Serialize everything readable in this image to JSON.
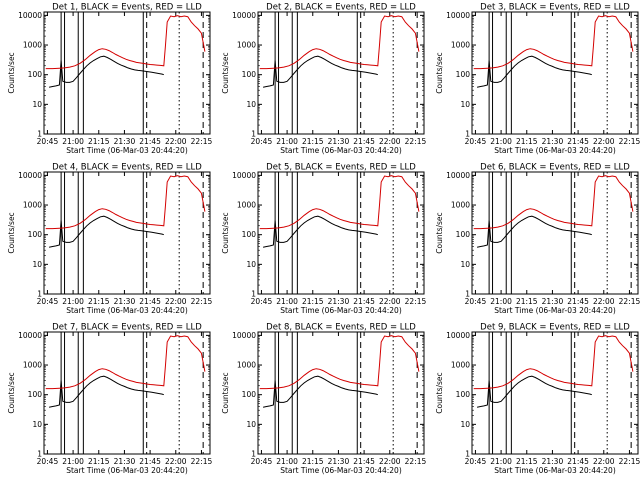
{
  "chart_data": {
    "type": "line",
    "xlabel": "Start Time (06-Mar-03 20:44:20)",
    "ylabel": "Counts/sec",
    "xlim": [
      -2,
      95
    ],
    "ylim": [
      1,
      13000
    ],
    "yscale": "log",
    "x_ticks": [
      0,
      15,
      30,
      45,
      60,
      75,
      90
    ],
    "x_tick_labels": [
      "20:45",
      "21:00",
      "21:15",
      "21:30",
      "21:45",
      "22:00",
      "22:15"
    ],
    "y_ticks": [
      1,
      10,
      100,
      1000,
      10000
    ],
    "y_tick_labels": [
      "1",
      "10",
      "100",
      "1000",
      "10000"
    ],
    "legend": {
      "black": "Events",
      "red": "LLD"
    },
    "panels": [
      {
        "title": "Det 1, BLACK = Events, RED = LLD",
        "events_level": 1.0,
        "lld_level": 1.0
      },
      {
        "title": "Det 2, BLACK = Events, RED = LLD",
        "events_level": 1.0,
        "lld_level": 1.0
      },
      {
        "title": "Det 3, BLACK = Events, RED = LLD",
        "events_level": 1.0,
        "lld_level": 1.0
      },
      {
        "title": "Det 4, BLACK = Events, RED = LLD",
        "events_level": 1.0,
        "lld_level": 1.0
      },
      {
        "title": "Det 5, BLACK = Events, RED = LLD",
        "events_level": 1.0,
        "lld_level": 1.0
      },
      {
        "title": "Det 6, BLACK = Events, RED = LLD",
        "events_level": 1.0,
        "lld_level": 1.0
      },
      {
        "title": "Det 7, BLACK = Events, RED = LLD",
        "events_level": 1.0,
        "lld_level": 1.0
      },
      {
        "title": "Det 8, BLACK = Events, RED = LLD",
        "events_level": 1.0,
        "lld_level": 1.0
      },
      {
        "title": "Det 9, BLACK = Events, RED = LLD",
        "events_level": 1.0,
        "lld_level": 1.0
      }
    ],
    "series": [
      {
        "name": "Events",
        "color": "#000000",
        "points": [
          [
            1,
            38
          ],
          [
            3,
            40
          ],
          [
            5,
            42
          ],
          [
            7,
            45
          ],
          [
            8,
            300
          ],
          [
            9,
            60
          ],
          [
            11,
            55
          ],
          [
            13,
            55
          ],
          [
            15,
            60
          ],
          [
            17,
            80
          ],
          [
            19,
            110
          ],
          [
            21,
            150
          ],
          [
            23,
            200
          ],
          [
            25,
            250
          ],
          [
            27,
            300
          ],
          [
            29,
            350
          ],
          [
            31,
            400
          ],
          [
            33,
            420
          ],
          [
            35,
            380
          ],
          [
            37,
            330
          ],
          [
            39,
            280
          ],
          [
            41,
            240
          ],
          [
            43,
            210
          ],
          [
            45,
            190
          ],
          [
            47,
            170
          ],
          [
            49,
            155
          ],
          [
            51,
            145
          ],
          [
            53,
            140
          ],
          [
            55,
            135
          ],
          [
            57,
            130
          ],
          [
            59,
            125
          ],
          [
            61,
            120
          ],
          [
            63,
            115
          ],
          [
            65,
            110
          ],
          [
            67,
            105
          ],
          [
            68,
            100
          ]
        ]
      },
      {
        "name": "LLD",
        "color": "#d40000",
        "points": [
          [
            -1,
            160
          ],
          [
            3,
            160
          ],
          [
            7,
            165
          ],
          [
            10,
            170
          ],
          [
            13,
            180
          ],
          [
            16,
            200
          ],
          [
            19,
            240
          ],
          [
            22,
            320
          ],
          [
            25,
            450
          ],
          [
            28,
            600
          ],
          [
            30,
            700
          ],
          [
            32,
            750
          ],
          [
            34,
            720
          ],
          [
            36,
            650
          ],
          [
            38,
            560
          ],
          [
            40,
            480
          ],
          [
            42,
            420
          ],
          [
            44,
            370
          ],
          [
            46,
            330
          ],
          [
            48,
            300
          ],
          [
            50,
            280
          ],
          [
            52,
            260
          ],
          [
            54,
            250
          ],
          [
            56,
            240
          ],
          [
            58,
            230
          ],
          [
            60,
            220
          ],
          [
            62,
            215
          ],
          [
            64,
            210
          ],
          [
            66,
            205
          ],
          [
            68,
            200
          ],
          [
            69,
            1000
          ],
          [
            70,
            6000
          ],
          [
            72,
            9500
          ],
          [
            74,
            9000
          ],
          [
            76,
            9800
          ],
          [
            78,
            9000
          ],
          [
            80,
            9500
          ],
          [
            82,
            9000
          ],
          [
            84,
            6000
          ],
          [
            86,
            4500
          ],
          [
            88,
            3500
          ],
          [
            90,
            2500
          ],
          [
            91,
            1200
          ],
          [
            92,
            600
          ]
        ]
      }
    ],
    "vertical_markers": [
      {
        "x": 8,
        "style": "solid"
      },
      {
        "x": 10,
        "style": "solid"
      },
      {
        "x": 18,
        "style": "solid"
      },
      {
        "x": 21,
        "style": "solid"
      },
      {
        "x": 56,
        "style": "solid"
      },
      {
        "x": 58,
        "style": "dashed"
      },
      {
        "x": 77,
        "style": "dotted"
      },
      {
        "x": 91,
        "style": "dashed"
      }
    ]
  }
}
